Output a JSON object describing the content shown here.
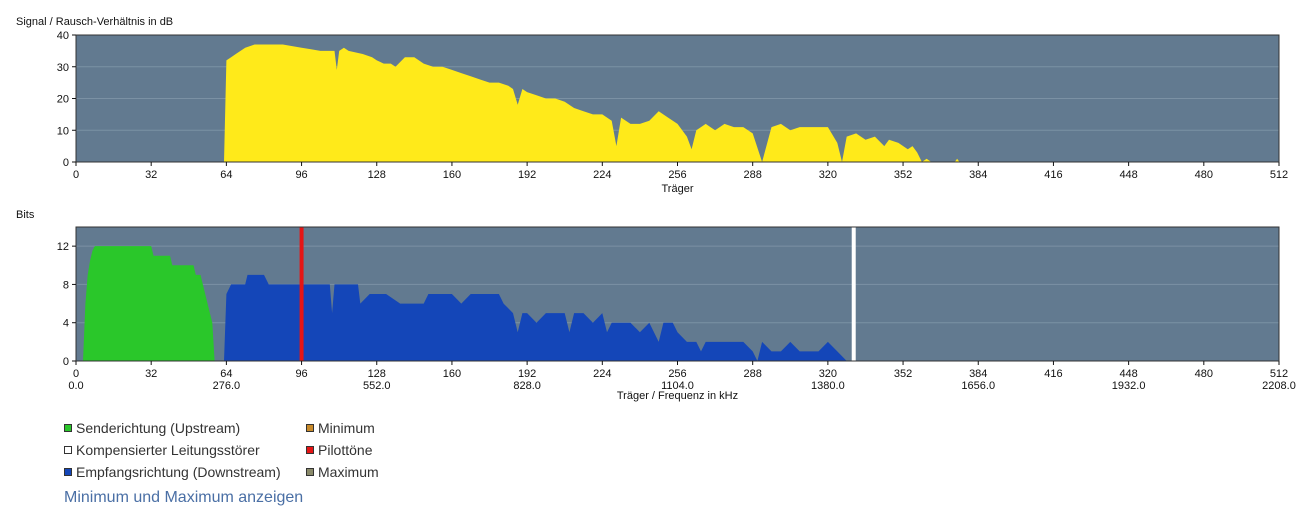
{
  "colors": {
    "plot_bg": "#627a90",
    "grid": "#7b91a4",
    "snr_fill": "#ffea1a",
    "upstream": "#2ac72a",
    "downstream": "#1446b8",
    "pilot": "#e51515",
    "rfi": "#ffffff",
    "minimum": "#c88a2a",
    "maximum": "#8a8a6a",
    "link": "#4a6fa5"
  },
  "chart_data": [
    {
      "type": "area",
      "title": "Signal / Rausch-Verhältnis in dB",
      "xlabel": "Träger",
      "ylabel": "Signal / Rausch-Verhältnis in dB",
      "xlim": [
        0,
        512
      ],
      "ylim": [
        0,
        40
      ],
      "x_ticks": [
        0,
        32,
        64,
        96,
        128,
        160,
        192,
        224,
        256,
        288,
        320,
        352,
        384,
        416,
        448,
        480,
        512
      ],
      "y_ticks": [
        0,
        10,
        20,
        30,
        40
      ],
      "grid": true,
      "series": [
        {
          "color": "#ffea1a",
          "points": [
            [
              63,
              0
            ],
            [
              64,
              32
            ],
            [
              66,
              33
            ],
            [
              68,
              34
            ],
            [
              70,
              35
            ],
            [
              72,
              36
            ],
            [
              74,
              36.5
            ],
            [
              76,
              37
            ],
            [
              80,
              37
            ],
            [
              84,
              37
            ],
            [
              88,
              37
            ],
            [
              92,
              36.5
            ],
            [
              96,
              36
            ],
            [
              100,
              35.5
            ],
            [
              104,
              35
            ],
            [
              110,
              35
            ],
            [
              111,
              29
            ],
            [
              112,
              35
            ],
            [
              114,
              36
            ],
            [
              116,
              35
            ],
            [
              122,
              34
            ],
            [
              126,
              33
            ],
            [
              128,
              32
            ],
            [
              131,
              31
            ],
            [
              134,
              31
            ],
            [
              136,
              30
            ],
            [
              140,
              33
            ],
            [
              144,
              33
            ],
            [
              148,
              31
            ],
            [
              152,
              30
            ],
            [
              156,
              30
            ],
            [
              160,
              29
            ],
            [
              164,
              28
            ],
            [
              168,
              27
            ],
            [
              172,
              26
            ],
            [
              176,
              25
            ],
            [
              180,
              25
            ],
            [
              184,
              24
            ],
            [
              186,
              23
            ],
            [
              188,
              18
            ],
            [
              190,
              23
            ],
            [
              192,
              22
            ],
            [
              196,
              21
            ],
            [
              200,
              20
            ],
            [
              204,
              20
            ],
            [
              208,
              19
            ],
            [
              212,
              17
            ],
            [
              216,
              16
            ],
            [
              220,
              15
            ],
            [
              224,
              15
            ],
            [
              228,
              13
            ],
            [
              230,
              5
            ],
            [
              232,
              14
            ],
            [
              236,
              12
            ],
            [
              240,
              12
            ],
            [
              244,
              13
            ],
            [
              248,
              16
            ],
            [
              252,
              14
            ],
            [
              256,
              12
            ],
            [
              260,
              8
            ],
            [
              262,
              4
            ],
            [
              264,
              10
            ],
            [
              268,
              12
            ],
            [
              272,
              10
            ],
            [
              276,
              12
            ],
            [
              280,
              11
            ],
            [
              284,
              11
            ],
            [
              288,
              9
            ],
            [
              292,
              0
            ],
            [
              296,
              11
            ],
            [
              300,
              12
            ],
            [
              304,
              10
            ],
            [
              308,
              11
            ],
            [
              312,
              11
            ],
            [
              316,
              11
            ],
            [
              320,
              11
            ],
            [
              324,
              6
            ],
            [
              326,
              0
            ],
            [
              328,
              8
            ],
            [
              332,
              9
            ],
            [
              336,
              7
            ],
            [
              340,
              8
            ],
            [
              344,
              5
            ],
            [
              346,
              7
            ],
            [
              350,
              6
            ],
            [
              354,
              4
            ],
            [
              356,
              5
            ],
            [
              358,
              3
            ],
            [
              360,
              0
            ],
            [
              362,
              1
            ],
            [
              364,
              0
            ],
            [
              374,
              0
            ],
            [
              375,
              1
            ],
            [
              376,
              0
            ],
            [
              384,
              0
            ]
          ]
        }
      ]
    },
    {
      "type": "area",
      "title": "Bits",
      "xlabel": "Träger / Frequenz in kHz",
      "ylabel": "Bits",
      "xlim": [
        0,
        512
      ],
      "ylim": [
        0,
        14
      ],
      "x_ticks": [
        0,
        32,
        64,
        96,
        128,
        160,
        192,
        224,
        256,
        288,
        320,
        352,
        384,
        416,
        448,
        480,
        512
      ],
      "x_freq_labels": [
        "0.0",
        "276.0",
        "552.0",
        "828.0",
        "1104.0",
        "1380.0",
        "1656.0",
        "1932.0",
        "2208.0"
      ],
      "y_ticks": [
        0,
        4,
        8,
        12
      ],
      "grid": true,
      "series": [
        {
          "name": "Senderichtung (Upstream)",
          "color": "#2ac72a",
          "points": [
            [
              3,
              0
            ],
            [
              4,
              6
            ],
            [
              5,
              9
            ],
            [
              6,
              10.5
            ],
            [
              7,
              11.5
            ],
            [
              8,
              12
            ],
            [
              32,
              12
            ],
            [
              33,
              11
            ],
            [
              40,
              11
            ],
            [
              41,
              10
            ],
            [
              50,
              10
            ],
            [
              51,
              9
            ],
            [
              53,
              9
            ],
            [
              55,
              7
            ],
            [
              57,
              5
            ],
            [
              58,
              4
            ],
            [
              59,
              0
            ]
          ]
        },
        {
          "name": "Empfangsrichtung (Downstream)",
          "color": "#1446b8",
          "points": [
            [
              63,
              0
            ],
            [
              64,
              7
            ],
            [
              66,
              8
            ],
            [
              72,
              8
            ],
            [
              73,
              9
            ],
            [
              80,
              9
            ],
            [
              82,
              8
            ],
            [
              108,
              8
            ],
            [
              109,
              5
            ],
            [
              110,
              8
            ],
            [
              120,
              8
            ],
            [
              121,
              6
            ],
            [
              125,
              7
            ],
            [
              128,
              7
            ],
            [
              132,
              7
            ],
            [
              138,
              6
            ],
            [
              148,
              6
            ],
            [
              150,
              7
            ],
            [
              160,
              7
            ],
            [
              164,
              6
            ],
            [
              168,
              7
            ],
            [
              180,
              7
            ],
            [
              182,
              6
            ],
            [
              186,
              5
            ],
            [
              188,
              3
            ],
            [
              190,
              5
            ],
            [
              192,
              5
            ],
            [
              196,
              4
            ],
            [
              200,
              5
            ],
            [
              208,
              5
            ],
            [
              210,
              3
            ],
            [
              212,
              5
            ],
            [
              216,
              5
            ],
            [
              220,
              4
            ],
            [
              224,
              5
            ],
            [
              226,
              3
            ],
            [
              228,
              4
            ],
            [
              232,
              4
            ],
            [
              236,
              4
            ],
            [
              240,
              3
            ],
            [
              244,
              4
            ],
            [
              248,
              2
            ],
            [
              250,
              4
            ],
            [
              254,
              4
            ],
            [
              256,
              3
            ],
            [
              260,
              2
            ],
            [
              264,
              2
            ],
            [
              266,
              1
            ],
            [
              268,
              2
            ],
            [
              272,
              2
            ],
            [
              276,
              2
            ],
            [
              280,
              2
            ],
            [
              284,
              2
            ],
            [
              288,
              1
            ],
            [
              290,
              0
            ],
            [
              292,
              2
            ],
            [
              296,
              1
            ],
            [
              300,
              1
            ],
            [
              304,
              2
            ],
            [
              308,
              1
            ],
            [
              312,
              1
            ],
            [
              316,
              1
            ],
            [
              320,
              2
            ],
            [
              324,
              1
            ],
            [
              328,
              0
            ],
            [
              330,
              0
            ]
          ]
        }
      ],
      "markers": [
        {
          "name": "Pilottöne",
          "x": 96,
          "color": "#e51515"
        },
        {
          "name": "Kompensierter Leitungsstörer",
          "x": 331,
          "color": "#ffffff"
        }
      ]
    }
  ],
  "legend": {
    "items": [
      {
        "label": "Senderichtung (Upstream)",
        "color": "#2ac72a"
      },
      {
        "label": "Kompensierter Leitungsstörer",
        "color": "#ffffff"
      },
      {
        "label": "Empfangsrichtung (Downstream)",
        "color": "#1446b8"
      },
      {
        "label": "Minimum",
        "color": "#c88a2a"
      },
      {
        "label": "Pilottöne",
        "color": "#e51515"
      },
      {
        "label": "Maximum",
        "color": "#8a8a6a"
      }
    ]
  },
  "toggle_label": "Minimum und Maximum anzeigen"
}
